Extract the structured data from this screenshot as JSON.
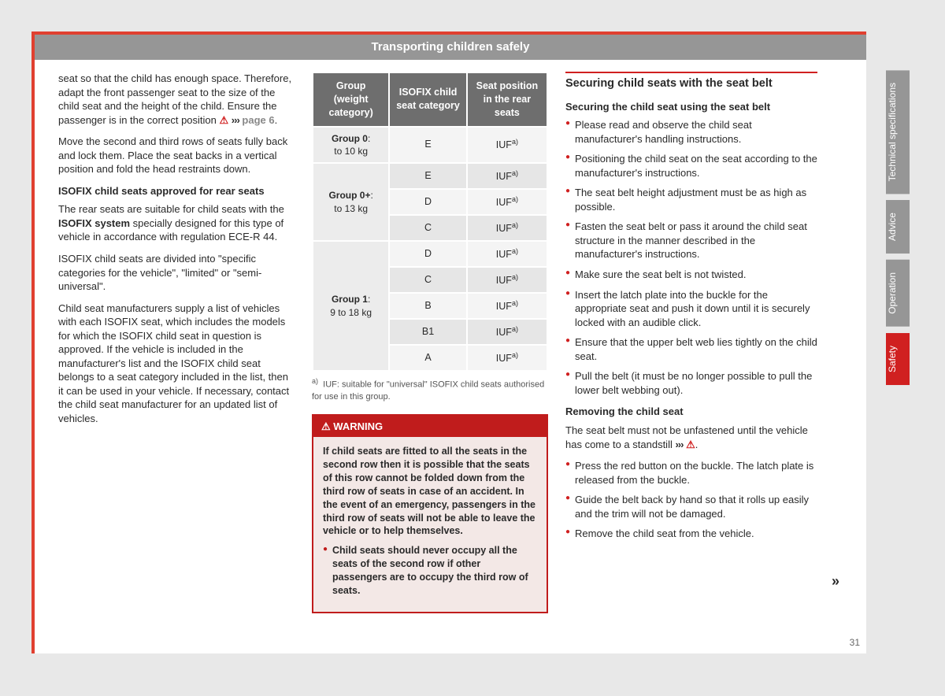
{
  "header": "Transporting children safely",
  "page_number": "31",
  "col1": {
    "p1_a": "seat so that the child has enough space. Therefore, adapt the front passenger seat to the size of the child seat and the height of the child. Ensure the passenger is in the correct position ",
    "p1_ref": "page 6",
    "p2": "Move the second and third rows of seats fully back and lock them. Place the seat backs in a vertical position and fold the head restraints down.",
    "h1": "ISOFIX child seats approved for rear seats",
    "p3a": "The rear seats are suitable for child seats with the ",
    "p3b": "ISOFIX system",
    "p3c": " specially designed for this type of vehicle in accordance with regulation ECE-R 44.",
    "p4": "ISOFIX child seats are divided into \"specific categories for the vehicle\", \"limited\" or \"semi-universal\".",
    "p5": "Child seat manufacturers supply a list of vehicles with each ISOFIX seat, which includes the models for which the ISOFIX child seat in question is approved. If the vehicle is included in the manufacturer's list and the ISOFIX child seat belongs to a seat category included in the list, then it can be used in your vehicle. If necessary, contact the child seat manufacturer for an updated list of vehicles."
  },
  "table": {
    "headers": [
      "Group (weight category)",
      "ISOFIX child seat category",
      "Seat position in the rear seats"
    ],
    "groups": [
      {
        "label1": "Group 0",
        "label2": "to 10 kg",
        "rows": [
          [
            "E",
            "IUF"
          ]
        ]
      },
      {
        "label1": "Group 0+",
        "label2": "to 13 kg",
        "rows": [
          [
            "E",
            "IUF"
          ],
          [
            "D",
            "IUF"
          ],
          [
            "C",
            "IUF"
          ]
        ]
      },
      {
        "label1": "Group 1",
        "label2": "9 to 18 kg",
        "rows": [
          [
            "D",
            "IUF"
          ],
          [
            "C",
            "IUF"
          ],
          [
            "B",
            "IUF"
          ],
          [
            "B1",
            "IUF"
          ],
          [
            "A",
            "IUF"
          ]
        ]
      }
    ],
    "footnote_label": "a)",
    "footnote": "IUF: suitable for \"universal\" ISOFIX child seats authorised for use in this group."
  },
  "warning": {
    "title": "WARNING",
    "p1": "If child seats are fitted to all the seats in the second row then it is possible that the seats of this row cannot be folded down from the third row of seats in case of an accident. In the event of an emergency, passengers in the third row of seats will not be able to leave the vehicle or to help themselves.",
    "p2": "Child seats should never occupy all the seats of the second row if other passengers are to occupy the third row of seats."
  },
  "col3": {
    "title": "Securing child seats with the seat belt",
    "h1": "Securing the child seat using the seat belt",
    "bullets1": [
      "Please read and observe the child seat manufacturer's handling instructions.",
      "Positioning the child seat on the seat according to the manufacturer's instructions.",
      "The seat belt height adjustment must be as high as possible.",
      "Fasten the seat belt or pass it around the child seat structure in the manner described in the manufacturer's instructions.",
      "Make sure the seat belt is not twisted.",
      "Insert the latch plate into the buckle for the appropriate seat and push it down until it is securely locked with an audible click.",
      "Ensure that the upper belt web lies tightly on the child seat.",
      "Pull the belt (it must be no longer possible to pull the lower belt webbing out)."
    ],
    "h2": "Removing the child seat",
    "p_remove": "The seat belt must not be unfastened until the vehicle has come to a standstill ",
    "bullets2": [
      "Press the red button on the buckle. The latch plate is released from the buckle.",
      "Guide the belt back by hand so that it rolls up easily and the trim will not be damaged.",
      "Remove the child seat from the vehicle."
    ]
  },
  "tabs": [
    "Technical specifications",
    "Advice",
    "Operation",
    "Safety"
  ]
}
